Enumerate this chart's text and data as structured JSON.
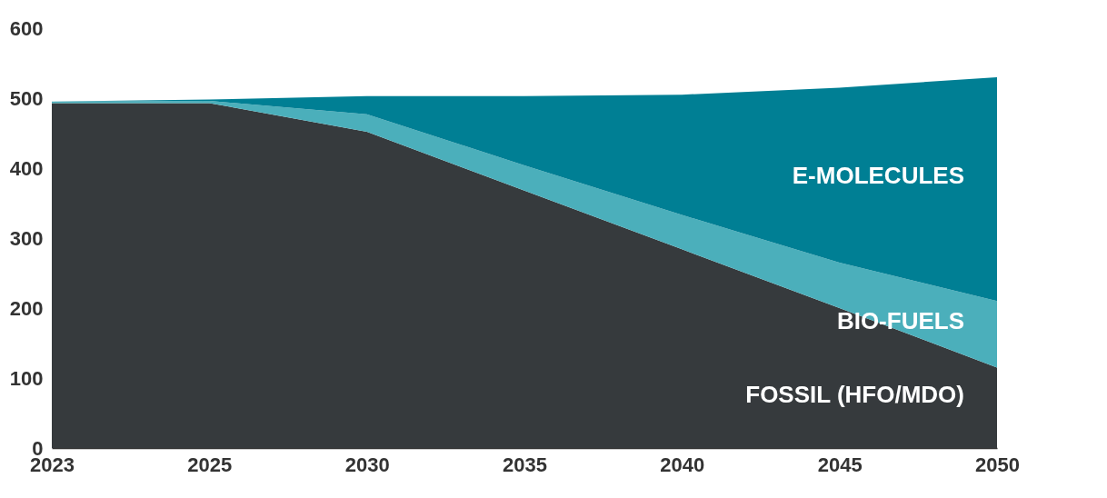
{
  "chart_data": {
    "type": "area",
    "stacked": true,
    "categories": [
      "2023",
      "2025",
      "2030",
      "2035",
      "2040",
      "2045",
      "2050"
    ],
    "series": [
      {
        "name": "FOSSIL (HFO/MDO)",
        "color": "#363a3d",
        "values": [
          493,
          493,
          452,
          368,
          284,
          200,
          115
        ]
      },
      {
        "name": "BIO-FUELS",
        "color": "#4bafbb",
        "values": [
          2,
          3,
          25,
          36,
          49,
          65,
          95
        ]
      },
      {
        "name": "E-MOLECULES",
        "color": "#007f94",
        "values": [
          0,
          2,
          26,
          99,
          172,
          250,
          320
        ]
      }
    ],
    "ylim": [
      0,
      600
    ],
    "yticks": [
      0,
      100,
      200,
      300,
      400,
      500,
      600
    ],
    "grid": false,
    "legend": false
  }
}
